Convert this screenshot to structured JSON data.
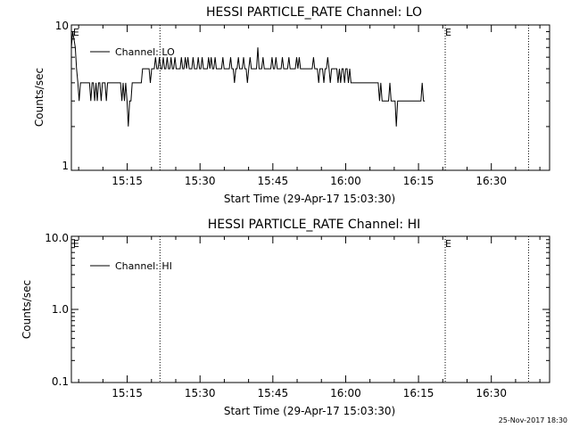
{
  "chart_data": [
    {
      "type": "line",
      "title": "HESSI PARTICLE_RATE Channel: LO",
      "xlabel": "Start Time (29-Apr-17 15:03:30)",
      "ylabel": "Counts/sec",
      "yscale": "log",
      "ylim": [
        1,
        10
      ],
      "y_ticks": [
        "1",
        "10"
      ],
      "xlim": [
        "15:03:30",
        "16:42:00"
      ],
      "x_ticks": [
        "15:15",
        "15:30",
        "15:45",
        "16:00",
        "16:15",
        "16:30"
      ],
      "grid": false,
      "legend": {
        "position": "top-left",
        "entries": [
          "Channel: LO"
        ]
      },
      "series": [
        {
          "name": "Channel: LO",
          "x_start": "15:03:30",
          "x_step_seconds": 16,
          "values": [
            7,
            9,
            8,
            7,
            5,
            4,
            3,
            4,
            4,
            4,
            4,
            4,
            4,
            4,
            4,
            3,
            4,
            4,
            3,
            4,
            3,
            4,
            4,
            3,
            4,
            4,
            4,
            3,
            4,
            4,
            4,
            4,
            4,
            4,
            4,
            4,
            4,
            4,
            4,
            3,
            4,
            3,
            4,
            3,
            2,
            3,
            3,
            4,
            4,
            4,
            4,
            4,
            4,
            4,
            4,
            5,
            5,
            5,
            5,
            5,
            5,
            4,
            5,
            5,
            5,
            6,
            5,
            5,
            6,
            5,
            5,
            6,
            5,
            5,
            6,
            5,
            5,
            6,
            5,
            5,
            6,
            5,
            5,
            5,
            5,
            6,
            5,
            5,
            6,
            5,
            6,
            5,
            5,
            5,
            6,
            5,
            5,
            5,
            6,
            5,
            5,
            6,
            5,
            5,
            5,
            5,
            6,
            5,
            6,
            5,
            5,
            6,
            5,
            5,
            5,
            5,
            5,
            6,
            5,
            5,
            5,
            5,
            5,
            6,
            5,
            5,
            4,
            5,
            5,
            6,
            5,
            5,
            5,
            6,
            5,
            5,
            4,
            5,
            6,
            5,
            5,
            5,
            5,
            5,
            7,
            5,
            5,
            5,
            6,
            5,
            5,
            5,
            5,
            5,
            5,
            6,
            5,
            5,
            6,
            5,
            5,
            5,
            5,
            6,
            5,
            5,
            5,
            5,
            6,
            5,
            5,
            5,
            5,
            5,
            6,
            5,
            6,
            5,
            5,
            5,
            5,
            5,
            5,
            5,
            5,
            5,
            5,
            6,
            5,
            5,
            5,
            4,
            5,
            5,
            5,
            4,
            5,
            5,
            6,
            5,
            4,
            5,
            5,
            5,
            5,
            5,
            4,
            5,
            4,
            5,
            5,
            4,
            5,
            5,
            4,
            5,
            4,
            4,
            4,
            4,
            4,
            4,
            4,
            4,
            4,
            4,
            4,
            4,
            4,
            4,
            4,
            4,
            4,
            4,
            4,
            4,
            4,
            4,
            3,
            4,
            3,
            3,
            3,
            3,
            3,
            3,
            4,
            3,
            3,
            3,
            3,
            2,
            3,
            3,
            3,
            3,
            3,
            3,
            3,
            3,
            3,
            3,
            3,
            3,
            3,
            3,
            3,
            3,
            3,
            3,
            3,
            4,
            3,
            3
          ]
        }
      ],
      "markers": [
        {
          "label": "E",
          "at": "15:03:50"
        },
        {
          "label": "E",
          "at": "16:20:30"
        }
      ],
      "dotted_lines": [
        "15:21:45",
        "16:20:30",
        "16:37:40"
      ]
    },
    {
      "type": "line",
      "title": "HESSI PARTICLE_RATE Channel: HI",
      "xlabel": "Start Time (29-Apr-17 15:03:30)",
      "ylabel": "Counts/sec",
      "yscale": "log",
      "ylim": [
        0.1,
        10
      ],
      "y_ticks": [
        "0.1",
        "1.0",
        "10.0"
      ],
      "xlim": [
        "15:03:30",
        "16:42:00"
      ],
      "x_ticks": [
        "15:15",
        "15:30",
        "15:45",
        "16:00",
        "16:15",
        "16:30"
      ],
      "grid": false,
      "legend": {
        "position": "top-left",
        "entries": [
          "Channel: HI"
        ]
      },
      "series": [
        {
          "name": "Channel: HI",
          "values": []
        }
      ],
      "markers": [
        {
          "label": "E",
          "at": "15:03:50"
        },
        {
          "label": "E",
          "at": "16:20:30"
        }
      ],
      "dotted_lines": [
        "15:21:45",
        "16:20:30",
        "16:37:40"
      ]
    }
  ],
  "footer": {
    "stamp": "25-Nov-2017 18:30"
  }
}
